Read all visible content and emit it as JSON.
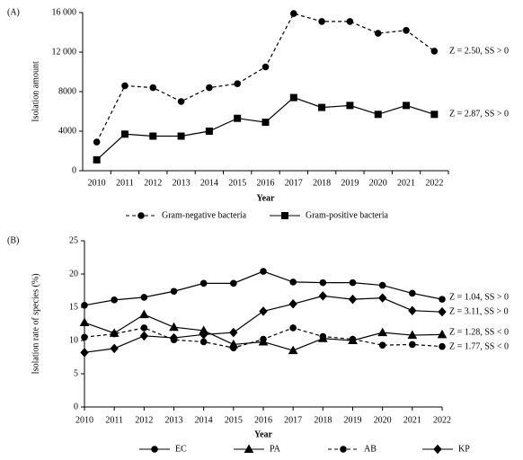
{
  "chart_data": [
    {
      "type": "line",
      "panel": "(A)",
      "y_label": "Isolation amount",
      "x_label": "Year",
      "categories": [
        "2010",
        "2011",
        "2012",
        "2013",
        "2014",
        "2015",
        "2016",
        "2017",
        "2018",
        "2019",
        "2020",
        "2021",
        "2022"
      ],
      "ylim": [
        0,
        16000
      ],
      "yticks": [
        0,
        4000,
        8000,
        {
          "value": 12000,
          "label": "12 000"
        },
        {
          "value": 16000,
          "label": "16 000"
        }
      ],
      "grid": false,
      "series": [
        {
          "name": "Gram-negative bacteria",
          "color": "#000000",
          "dash": true,
          "marker": "circle",
          "values": [
            2900,
            8600,
            8400,
            7000,
            8400,
            8800,
            10500,
            15900,
            15100,
            15100,
            13900,
            14200,
            12100
          ]
        },
        {
          "name": "Gram-positive bacteria",
          "color": "#000000",
          "dash": false,
          "marker": "square",
          "values": [
            1100,
            3700,
            3500,
            3500,
            4000,
            5300,
            4900,
            7400,
            6400,
            6600,
            5700,
            6600,
            5700
          ]
        }
      ],
      "annotations": [
        "Z = 2.50, SS > 0",
        "Z = 2.87, SS > 0"
      ]
    },
    {
      "type": "line",
      "panel": "(B)",
      "y_label": "Isolation rate of species (%)",
      "x_label": "Year",
      "x": [
        2010,
        2011,
        2012,
        2013,
        2014,
        2015,
        2016,
        2017,
        2018,
        2019,
        2020,
        2021,
        2022
      ],
      "xlim": [
        2010,
        2022
      ],
      "xticks": [
        2010,
        2011,
        2012,
        2013,
        2014,
        2015,
        2016,
        2017,
        2018,
        2019,
        2020,
        2021,
        2022
      ],
      "ylim": [
        0,
        25
      ],
      "yticks": [
        0,
        5,
        10,
        15,
        20,
        25
      ],
      "grid": false,
      "series": [
        {
          "name": "EC",
          "color": "#000000",
          "dash": false,
          "marker": "circle",
          "values": [
            15.3,
            16.1,
            16.5,
            17.4,
            18.6,
            18.6,
            20.4,
            18.8,
            18.7,
            18.7,
            18.3,
            17.1,
            16.2
          ]
        },
        {
          "name": "PA",
          "color": "#000000",
          "dash": false,
          "marker": "triangle",
          "values": [
            12.7,
            11.1,
            13.9,
            12.0,
            11.5,
            9.4,
            9.8,
            8.5,
            10.3,
            10.0,
            11.2,
            10.8,
            10.9
          ]
        },
        {
          "name": "AB",
          "color": "#000000",
          "dash": true,
          "marker": "circle",
          "values": [
            10.5,
            11.0,
            11.9,
            10.1,
            9.8,
            8.9,
            10.2,
            11.9,
            10.6,
            10.2,
            9.3,
            9.4,
            9.1
          ]
        },
        {
          "name": "KP",
          "color": "#000000",
          "dash": false,
          "marker": "diamond",
          "values": [
            8.2,
            8.8,
            10.7,
            10.4,
            10.9,
            11.2,
            14.4,
            15.5,
            16.7,
            16.2,
            16.4,
            14.5,
            14.3
          ]
        }
      ],
      "annotations": [
        "Z = 1.04, SS > 0",
        "Z = 3.11, SS > 0",
        "Z = 1.28, SS < 0",
        "Z = 1.77, SS < 0"
      ]
    }
  ]
}
